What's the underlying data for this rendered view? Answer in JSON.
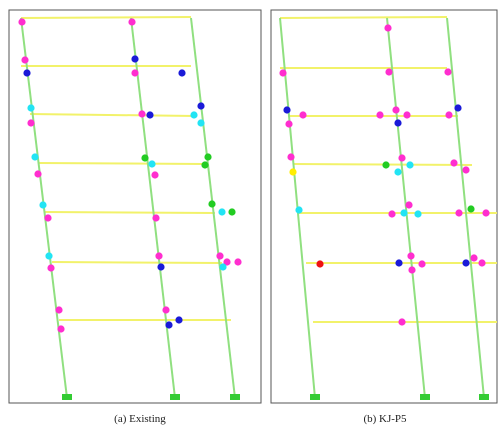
{
  "colors": {
    "frame_border": "#555555",
    "column": "#90e080",
    "beam": "#f2f26a",
    "support": "#33cc33",
    "hinge_magenta": "#ff2ecf",
    "hinge_blue": "#1a1ad8",
    "hinge_cyan": "#22e4f4",
    "hinge_green": "#22cc22",
    "hinge_yellow": "#ffee00",
    "hinge_red": "#ee1111"
  },
  "panels": [
    {
      "caption": "(a) Existing",
      "hinge_colors": [
        "magenta",
        "magenta",
        "magenta",
        "blue",
        "blue",
        "magenta",
        "blue",
        "cyan",
        "magenta",
        "magenta",
        "blue",
        "cyan",
        "cyan",
        "blue",
        "cyan",
        "green",
        "cyan",
        "green",
        "green",
        "magenta",
        "magenta",
        "cyan",
        "green",
        "magenta",
        "magenta",
        "cyan",
        "green",
        "cyan",
        "magenta",
        "magenta",
        "blue",
        "magenta",
        "magenta",
        "magenta",
        "cyan",
        "magenta",
        "magenta",
        "magenta",
        "blue",
        "blue"
      ]
    },
    {
      "caption": "(b) KJ-P5",
      "hinge_colors": [
        "magenta",
        "magenta",
        "magenta",
        "magenta",
        "blue",
        "magenta",
        "magenta",
        "magenta",
        "blue",
        "magenta",
        "magenta",
        "blue",
        "magenta",
        "magenta",
        "green",
        "magenta",
        "cyan",
        "magenta",
        "magenta",
        "yellow",
        "cyan",
        "magenta",
        "cyan",
        "magenta",
        "magenta",
        "green",
        "cyan",
        "cyan",
        "magenta",
        "red",
        "blue",
        "magenta",
        "magenta",
        "blue",
        "magenta",
        "magenta",
        "magenta",
        "magenta"
      ]
    }
  ]
}
